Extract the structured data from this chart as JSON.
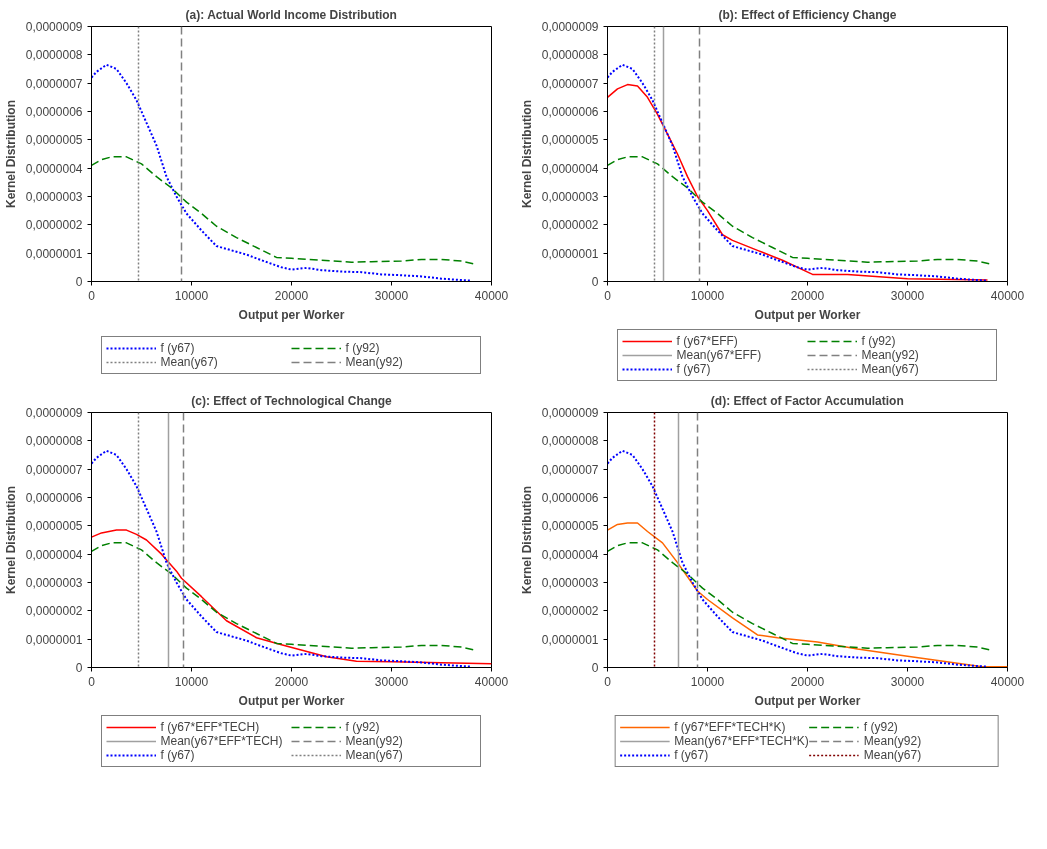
{
  "chart_data": [
    {
      "type": "line",
      "title": "(a): Actual World Income Distribution",
      "xlabel": "Output per Worker",
      "ylabel": "Kernel Distribution",
      "xlim": [
        0,
        40000
      ],
      "ylim": [
        0,
        9e-07
      ],
      "xticks": [
        0,
        10000,
        20000,
        30000,
        40000
      ],
      "yticks": [
        0,
        {
          "value": 1e-07,
          "label": "0,0000001"
        },
        {
          "value": 2e-07,
          "label": "0,0000002"
        },
        {
          "value": 3e-07,
          "label": "0,0000003"
        },
        {
          "value": 4e-07,
          "label": "0,0000004"
        },
        {
          "value": 5e-07,
          "label": "0,0000005"
        },
        {
          "value": 6e-07,
          "label": "0,0000006"
        },
        {
          "value": 7e-07,
          "label": "0,0000007"
        },
        {
          "value": 8e-07,
          "label": "0,0000008"
        },
        {
          "value": 9e-07,
          "label": "0,0000009"
        }
      ],
      "legend": "bottom",
      "series": [
        {
          "name": "f (y67)",
          "color": "#0000ff",
          "line_style": "dotted",
          "x": [
            0,
            500,
            1500,
            2500,
            3500,
            4500,
            5500,
            6500,
            7500,
            8500,
            9500,
            11000,
            12500,
            14000,
            15500,
            17000,
            19000,
            20000,
            21500,
            23000,
            25000,
            27000,
            29000,
            31000,
            33000,
            35000,
            37000,
            38000
          ],
          "values": [
            7.2e-07,
            7.4e-07,
            7.65e-07,
            7.5e-07,
            7e-07,
            6.4e-07,
            5.6e-07,
            4.8e-07,
            3.7e-07,
            3e-07,
            2.4e-07,
            1.8e-07,
            1.25e-07,
            1.1e-07,
            9.5e-08,
            7.5e-08,
            5e-08,
            4.2e-08,
            4.8e-08,
            4e-08,
            3.5e-08,
            3.3e-08,
            2.5e-08,
            2.2e-08,
            1.8e-08,
            1e-08,
            5e-09,
            3e-09
          ]
        },
        {
          "name": "f (y92)",
          "color": "#008000",
          "line_style": "dashed",
          "x": [
            0,
            1000,
            2000,
            3500,
            5000,
            6500,
            8000,
            9500,
            11000,
            12500,
            14500,
            16500,
            18500,
            20000,
            23000,
            26000,
            28000,
            31000,
            33000,
            35000,
            37000,
            38300
          ],
          "values": [
            4.1e-07,
            4.3e-07,
            4.4e-07,
            4.4e-07,
            4.15e-07,
            3.7e-07,
            3.3e-07,
            2.8e-07,
            2.4e-07,
            1.95e-07,
            1.55e-07,
            1.2e-07,
            8.5e-08,
            8.2e-08,
            7.5e-08,
            6.8e-08,
            7e-08,
            7.2e-08,
            7.8e-08,
            7.8e-08,
            7.2e-08,
            6.2e-08
          ]
        }
      ],
      "ref_lines": [
        {
          "axis": "x",
          "value": 4700,
          "label": "Mean(y67)",
          "color": "#808080",
          "line_style": "dotted"
        },
        {
          "axis": "x",
          "value": 9000,
          "label": "Mean(y92)",
          "color": "#808080",
          "line_style": "dashed"
        }
      ]
    },
    {
      "type": "line",
      "title": "(b): Effect of Efficiency Change",
      "xlabel": "Output per Worker",
      "ylabel": "Kernel Distribution",
      "xlim": [
        0,
        40000
      ],
      "ylim": [
        0,
        9e-07
      ],
      "xticks": [
        0,
        10000,
        20000,
        30000,
        40000
      ],
      "yticks": [
        0,
        {
          "value": 1e-07,
          "label": "0,0000001"
        },
        {
          "value": 2e-07,
          "label": "0,0000002"
        },
        {
          "value": 3e-07,
          "label": "0,0000003"
        },
        {
          "value": 4e-07,
          "label": "0,0000004"
        },
        {
          "value": 5e-07,
          "label": "0,0000005"
        },
        {
          "value": 6e-07,
          "label": "0,0000006"
        },
        {
          "value": 7e-07,
          "label": "0,0000007"
        },
        {
          "value": 8e-07,
          "label": "0,0000008"
        },
        {
          "value": 9e-07,
          "label": "0,0000009"
        }
      ],
      "legend": "bottom",
      "series": [
        {
          "name": "f (y67*EFF)",
          "color": "#ff0000",
          "line_style": "solid",
          "x": [
            0,
            1000,
            2000,
            3000,
            4000,
            5000,
            6000,
            7000,
            8000,
            9000,
            10000,
            11500,
            12500,
            15000,
            17500,
            20500,
            24000,
            30000,
            38000
          ],
          "values": [
            6.5e-07,
            6.8e-07,
            6.95e-07,
            6.9e-07,
            6.5e-07,
            5.9e-07,
            5.2e-07,
            4.5e-07,
            3.7e-07,
            3e-07,
            2.5e-07,
            1.65e-07,
            1.45e-07,
            1.1e-07,
            7.5e-08,
            2.5e-08,
            2.5e-08,
            1e-08,
            5e-09
          ]
        },
        {
          "name": "f (y92)",
          "color": "#008000",
          "line_style": "dashed",
          "x": [
            0,
            1000,
            2000,
            3500,
            5000,
            6500,
            8000,
            9500,
            11000,
            12500,
            14500,
            16500,
            18500,
            20000,
            23000,
            26000,
            28000,
            31000,
            33000,
            35000,
            37000,
            38300
          ],
          "values": [
            4.1e-07,
            4.3e-07,
            4.4e-07,
            4.4e-07,
            4.15e-07,
            3.7e-07,
            3.3e-07,
            2.8e-07,
            2.4e-07,
            1.95e-07,
            1.55e-07,
            1.2e-07,
            8.5e-08,
            8.2e-08,
            7.5e-08,
            6.8e-08,
            7e-08,
            7.2e-08,
            7.8e-08,
            7.8e-08,
            7.2e-08,
            6.2e-08
          ]
        },
        {
          "name": "f (y67)",
          "color": "#0000ff",
          "line_style": "dotted",
          "x": [
            0,
            500,
            1500,
            2500,
            3500,
            4500,
            5500,
            6500,
            7500,
            8500,
            9500,
            11000,
            12500,
            14000,
            15500,
            17000,
            19000,
            20000,
            21500,
            23000,
            25000,
            27000,
            29000,
            31000,
            33000,
            35000,
            37000,
            38000
          ],
          "values": [
            7.2e-07,
            7.4e-07,
            7.65e-07,
            7.5e-07,
            7e-07,
            6.4e-07,
            5.6e-07,
            4.8e-07,
            3.7e-07,
            3e-07,
            2.4e-07,
            1.8e-07,
            1.25e-07,
            1.1e-07,
            9.5e-08,
            7.5e-08,
            5e-08,
            4.2e-08,
            4.8e-08,
            4e-08,
            3.5e-08,
            3.3e-08,
            2.5e-08,
            2.2e-08,
            1.8e-08,
            1e-08,
            5e-09,
            3e-09
          ]
        }
      ],
      "ref_lines": [
        {
          "axis": "x",
          "value": 5600,
          "label": "Mean(y67*EFF)",
          "color": "#a0a0a0",
          "line_style": "solid"
        },
        {
          "axis": "x",
          "value": 9200,
          "label": "Mean(y92)",
          "color": "#808080",
          "line_style": "dashed"
        },
        {
          "axis": "x",
          "value": 4700,
          "label": "Mean(y67)",
          "color": "#808080",
          "line_style": "dotted"
        }
      ]
    },
    {
      "type": "line",
      "title": "(c): Effect of Technological Change",
      "xlabel": "Output per Worker",
      "ylabel": "Kernel Distribution",
      "xlim": [
        0,
        40000
      ],
      "ylim": [
        0,
        9e-07
      ],
      "xticks": [
        0,
        10000,
        20000,
        30000,
        40000
      ],
      "yticks": [
        0,
        {
          "value": 1e-07,
          "label": "0,0000001"
        },
        {
          "value": 2e-07,
          "label": "0,0000002"
        },
        {
          "value": 3e-07,
          "label": "0,0000003"
        },
        {
          "value": 4e-07,
          "label": "0,0000004"
        },
        {
          "value": 5e-07,
          "label": "0,0000005"
        },
        {
          "value": 6e-07,
          "label": "0,0000006"
        },
        {
          "value": 7e-07,
          "label": "0,0000007"
        },
        {
          "value": 8e-07,
          "label": "0,0000008"
        },
        {
          "value": 9e-07,
          "label": "0,0000009"
        }
      ],
      "legend": "bottom",
      "series": [
        {
          "name": "f (y67*EFF*TECH)",
          "color": "#ff0000",
          "line_style": "solid",
          "x": [
            0,
            1000,
            2500,
            3500,
            4500,
            5500,
            7000,
            8500,
            9000,
            11000,
            13500,
            16500,
            19000,
            23500,
            26500,
            30000,
            35000,
            40000
          ],
          "values": [
            4.6e-07,
            4.75e-07,
            4.85e-07,
            4.85e-07,
            4.7e-07,
            4.5e-07,
            4e-07,
            3.4e-07,
            3.15e-07,
            2.5e-07,
            1.65e-07,
            1.05e-07,
            8e-08,
            3.8e-08,
            2.2e-08,
            2e-08,
            1.7e-08,
            1.3e-08
          ]
        },
        {
          "name": "f (y92)",
          "color": "#008000",
          "line_style": "dashed",
          "x": [
            0,
            1000,
            2000,
            3500,
            5000,
            6500,
            8000,
            9500,
            11000,
            12500,
            14500,
            16500,
            18500,
            20000,
            23000,
            26000,
            28000,
            31000,
            33000,
            35000,
            37000,
            38300
          ],
          "values": [
            4.1e-07,
            4.3e-07,
            4.4e-07,
            4.4e-07,
            4.15e-07,
            3.7e-07,
            3.3e-07,
            2.8e-07,
            2.4e-07,
            1.95e-07,
            1.55e-07,
            1.2e-07,
            8.5e-08,
            8.2e-08,
            7.5e-08,
            6.8e-08,
            7e-08,
            7.2e-08,
            7.8e-08,
            7.8e-08,
            7.2e-08,
            6.2e-08
          ]
        },
        {
          "name": "f (y67)",
          "color": "#0000ff",
          "line_style": "dotted",
          "x": [
            0,
            500,
            1500,
            2500,
            3500,
            4500,
            5500,
            6500,
            7500,
            8500,
            9500,
            11000,
            12500,
            14000,
            15500,
            17000,
            19000,
            20000,
            21500,
            23000,
            25000,
            27000,
            29000,
            31000,
            33000,
            35000,
            37000,
            38000
          ],
          "values": [
            7.2e-07,
            7.4e-07,
            7.65e-07,
            7.5e-07,
            7e-07,
            6.4e-07,
            5.6e-07,
            4.8e-07,
            3.7e-07,
            3e-07,
            2.4e-07,
            1.8e-07,
            1.25e-07,
            1.1e-07,
            9.5e-08,
            7.5e-08,
            5e-08,
            4.2e-08,
            4.8e-08,
            4e-08,
            3.5e-08,
            3.3e-08,
            2.5e-08,
            2.2e-08,
            1.8e-08,
            1e-08,
            5e-09,
            3e-09
          ]
        }
      ],
      "ref_lines": [
        {
          "axis": "x",
          "value": 7700,
          "label": "Mean(y67*EFF*TECH)",
          "color": "#a0a0a0",
          "line_style": "solid"
        },
        {
          "axis": "x",
          "value": 9200,
          "label": "Mean(y92)",
          "color": "#808080",
          "line_style": "dashed"
        },
        {
          "axis": "x",
          "value": 4700,
          "label": "Mean(y67)",
          "color": "#808080",
          "line_style": "dotted"
        }
      ]
    },
    {
      "type": "line",
      "title": "(d): Effect of Factor Accumulation",
      "xlabel": "Output per Worker",
      "ylabel": "Kernel Distribution",
      "xlim": [
        0,
        40000
      ],
      "ylim": [
        0,
        9e-07
      ],
      "xticks": [
        0,
        10000,
        20000,
        30000,
        40000
      ],
      "yticks": [
        0,
        {
          "value": 1e-07,
          "label": "0,0000001"
        },
        {
          "value": 2e-07,
          "label": "0,0000002"
        },
        {
          "value": 3e-07,
          "label": "0,0000003"
        },
        {
          "value": 4e-07,
          "label": "0,0000004"
        },
        {
          "value": 5e-07,
          "label": "0,0000005"
        },
        {
          "value": 6e-07,
          "label": "0,0000006"
        },
        {
          "value": 7e-07,
          "label": "0,0000007"
        },
        {
          "value": 8e-07,
          "label": "0,0000008"
        },
        {
          "value": 9e-07,
          "label": "0,0000009"
        }
      ],
      "legend": "bottom",
      "series": [
        {
          "name": "f (y67*EFF*TECH*K)",
          "color": "#ff6600",
          "line_style": "solid",
          "x": [
            0,
            1000,
            2000,
            3000,
            4000,
            5500,
            7000,
            9000,
            10000,
            12500,
            15000,
            17000,
            21000,
            25000,
            30000,
            35000,
            37500,
            40000
          ],
          "values": [
            4.85e-07,
            5.05e-07,
            5.1e-07,
            5.1e-07,
            4.8e-07,
            4.4e-07,
            3.7e-07,
            2.7e-07,
            2.4e-07,
            1.75e-07,
            1.15e-07,
            1.05e-07,
            9e-08,
            6.5e-08,
            4e-08,
            1.5e-08,
            3e-09,
            3e-09
          ]
        },
        {
          "name": "f (y92)",
          "color": "#008000",
          "line_style": "dashed",
          "x": [
            0,
            1000,
            2000,
            3500,
            5000,
            6500,
            8000,
            9500,
            11000,
            12500,
            14500,
            16500,
            18500,
            20000,
            23000,
            26000,
            28000,
            31000,
            33000,
            35000,
            37000,
            38300
          ],
          "values": [
            4.1e-07,
            4.3e-07,
            4.4e-07,
            4.4e-07,
            4.15e-07,
            3.7e-07,
            3.3e-07,
            2.8e-07,
            2.4e-07,
            1.95e-07,
            1.55e-07,
            1.2e-07,
            8.5e-08,
            8.2e-08,
            7.5e-08,
            6.8e-08,
            7e-08,
            7.2e-08,
            7.8e-08,
            7.8e-08,
            7.2e-08,
            6.2e-08
          ]
        },
        {
          "name": "f (y67)",
          "color": "#0000ff",
          "line_style": "dotted",
          "x": [
            0,
            500,
            1500,
            2500,
            3500,
            4500,
            5500,
            6500,
            7500,
            8500,
            9500,
            11000,
            12500,
            14000,
            15500,
            17000,
            19000,
            20000,
            21500,
            23000,
            25000,
            27000,
            29000,
            31000,
            33000,
            35000,
            37000,
            38000
          ],
          "values": [
            7.2e-07,
            7.4e-07,
            7.65e-07,
            7.5e-07,
            7e-07,
            6.4e-07,
            5.6e-07,
            4.8e-07,
            3.7e-07,
            3e-07,
            2.4e-07,
            1.8e-07,
            1.25e-07,
            1.1e-07,
            9.5e-08,
            7.5e-08,
            5e-08,
            4.2e-08,
            4.8e-08,
            4e-08,
            3.5e-08,
            3.3e-08,
            2.5e-08,
            2.2e-08,
            1.8e-08,
            1e-08,
            5e-09,
            3e-09
          ]
        }
      ],
      "ref_lines": [
        {
          "axis": "x",
          "value": 7100,
          "label": "Mean(y67*EFF*TECH*K)",
          "color": "#a0a0a0",
          "line_style": "solid"
        },
        {
          "axis": "x",
          "value": 9000,
          "label": "Mean(y92)",
          "color": "#808080",
          "line_style": "dashed"
        },
        {
          "axis": "x",
          "value": 4700,
          "label": "Mean(y67)",
          "color": "#800000",
          "line_style": "dotted"
        }
      ]
    }
  ]
}
